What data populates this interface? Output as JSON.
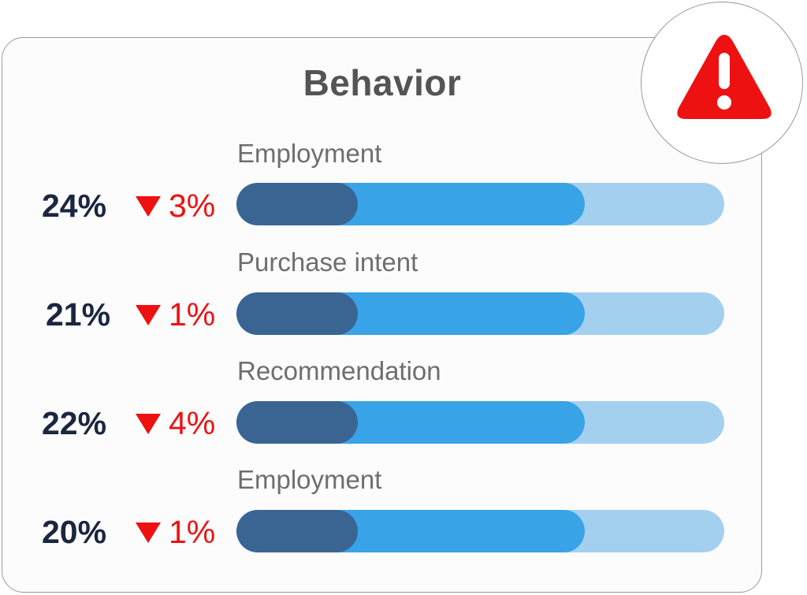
{
  "card": {
    "title": "Behavior"
  },
  "alert": {
    "icon": "warning-triangle-icon",
    "color": "#ee1111"
  },
  "colors": {
    "value_text": "#1b2640",
    "delta_down": "#ee1111",
    "bar_dark": "#3a6593",
    "bar_mid": "#38a3e6",
    "bar_light": "#a4d0ef"
  },
  "rows": [
    {
      "label": "Employment",
      "value": "24%",
      "delta": "3%",
      "direction": "down"
    },
    {
      "label": "Purchase intent",
      "value": "21%",
      "delta": "1%",
      "direction": "down"
    },
    {
      "label": "Recommendation",
      "value": "22%",
      "delta": "4%",
      "direction": "down"
    },
    {
      "label": "Employment",
      "value": "20%",
      "delta": "1%",
      "direction": "down"
    }
  ]
}
